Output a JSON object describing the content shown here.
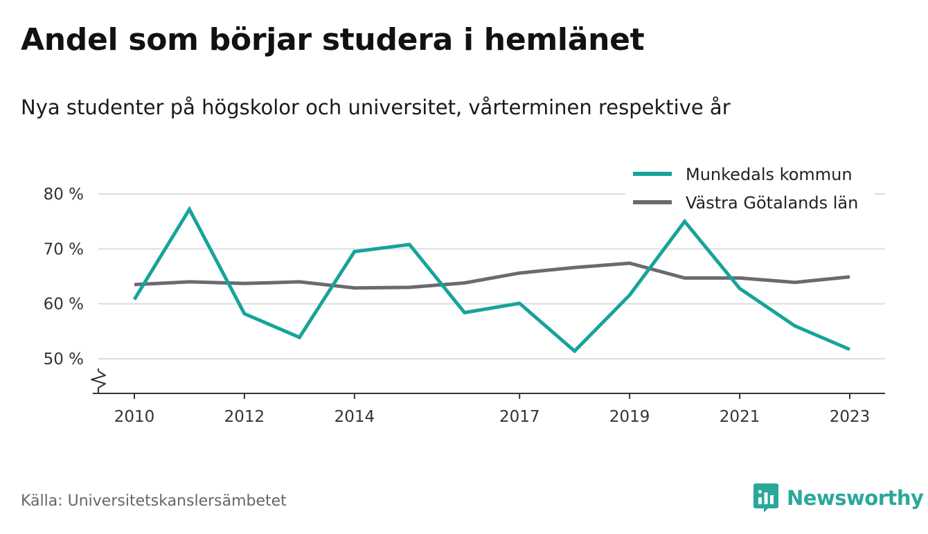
{
  "title": "Andel som börjar studera i hemlänet",
  "subtitle": "Nya studenter på högskolor och universitet, vårterminen respektive år",
  "source": "Källa: Universitetskanslersämbetet",
  "brand": "Newsworthy",
  "colors": {
    "munkedal": "#17a39a",
    "vastra": "#6b6a72",
    "grid": "#dddddd",
    "axis": "#333333",
    "brand": "#2aa89b"
  },
  "chart_data": {
    "type": "line",
    "x": [
      2010,
      2011,
      2012,
      2013,
      2014,
      2015,
      2016,
      2017,
      2018,
      2019,
      2020,
      2021,
      2022,
      2023
    ],
    "x_tick_labels": [
      "2010",
      "2012",
      "2014",
      "2017",
      "2019",
      "2021",
      "2023"
    ],
    "x_tick_values": [
      2010,
      2012,
      2014,
      2017,
      2019,
      2021,
      2023
    ],
    "y_tick_labels": [
      "50 %",
      "60 %",
      "70 %",
      "80 %"
    ],
    "y_tick_values": [
      50,
      60,
      70,
      80
    ],
    "ylim": [
      50,
      80
    ],
    "y_axis_break": true,
    "grid": true,
    "legend_position": "top-right",
    "series": [
      {
        "name": "Munkedals kommun",
        "color_key": "munkedal",
        "values": [
          60.8,
          77.2,
          58.2,
          53.9,
          69.5,
          70.8,
          58.4,
          60.1,
          51.4,
          61.6,
          75.0,
          62.8,
          56.0,
          51.7
        ]
      },
      {
        "name": "Västra Götalands län",
        "color_key": "vastra",
        "values": [
          63.5,
          64.0,
          63.7,
          64.0,
          62.9,
          63.0,
          63.8,
          65.6,
          66.6,
          67.4,
          64.7,
          64.7,
          63.9,
          64.9
        ]
      }
    ]
  }
}
